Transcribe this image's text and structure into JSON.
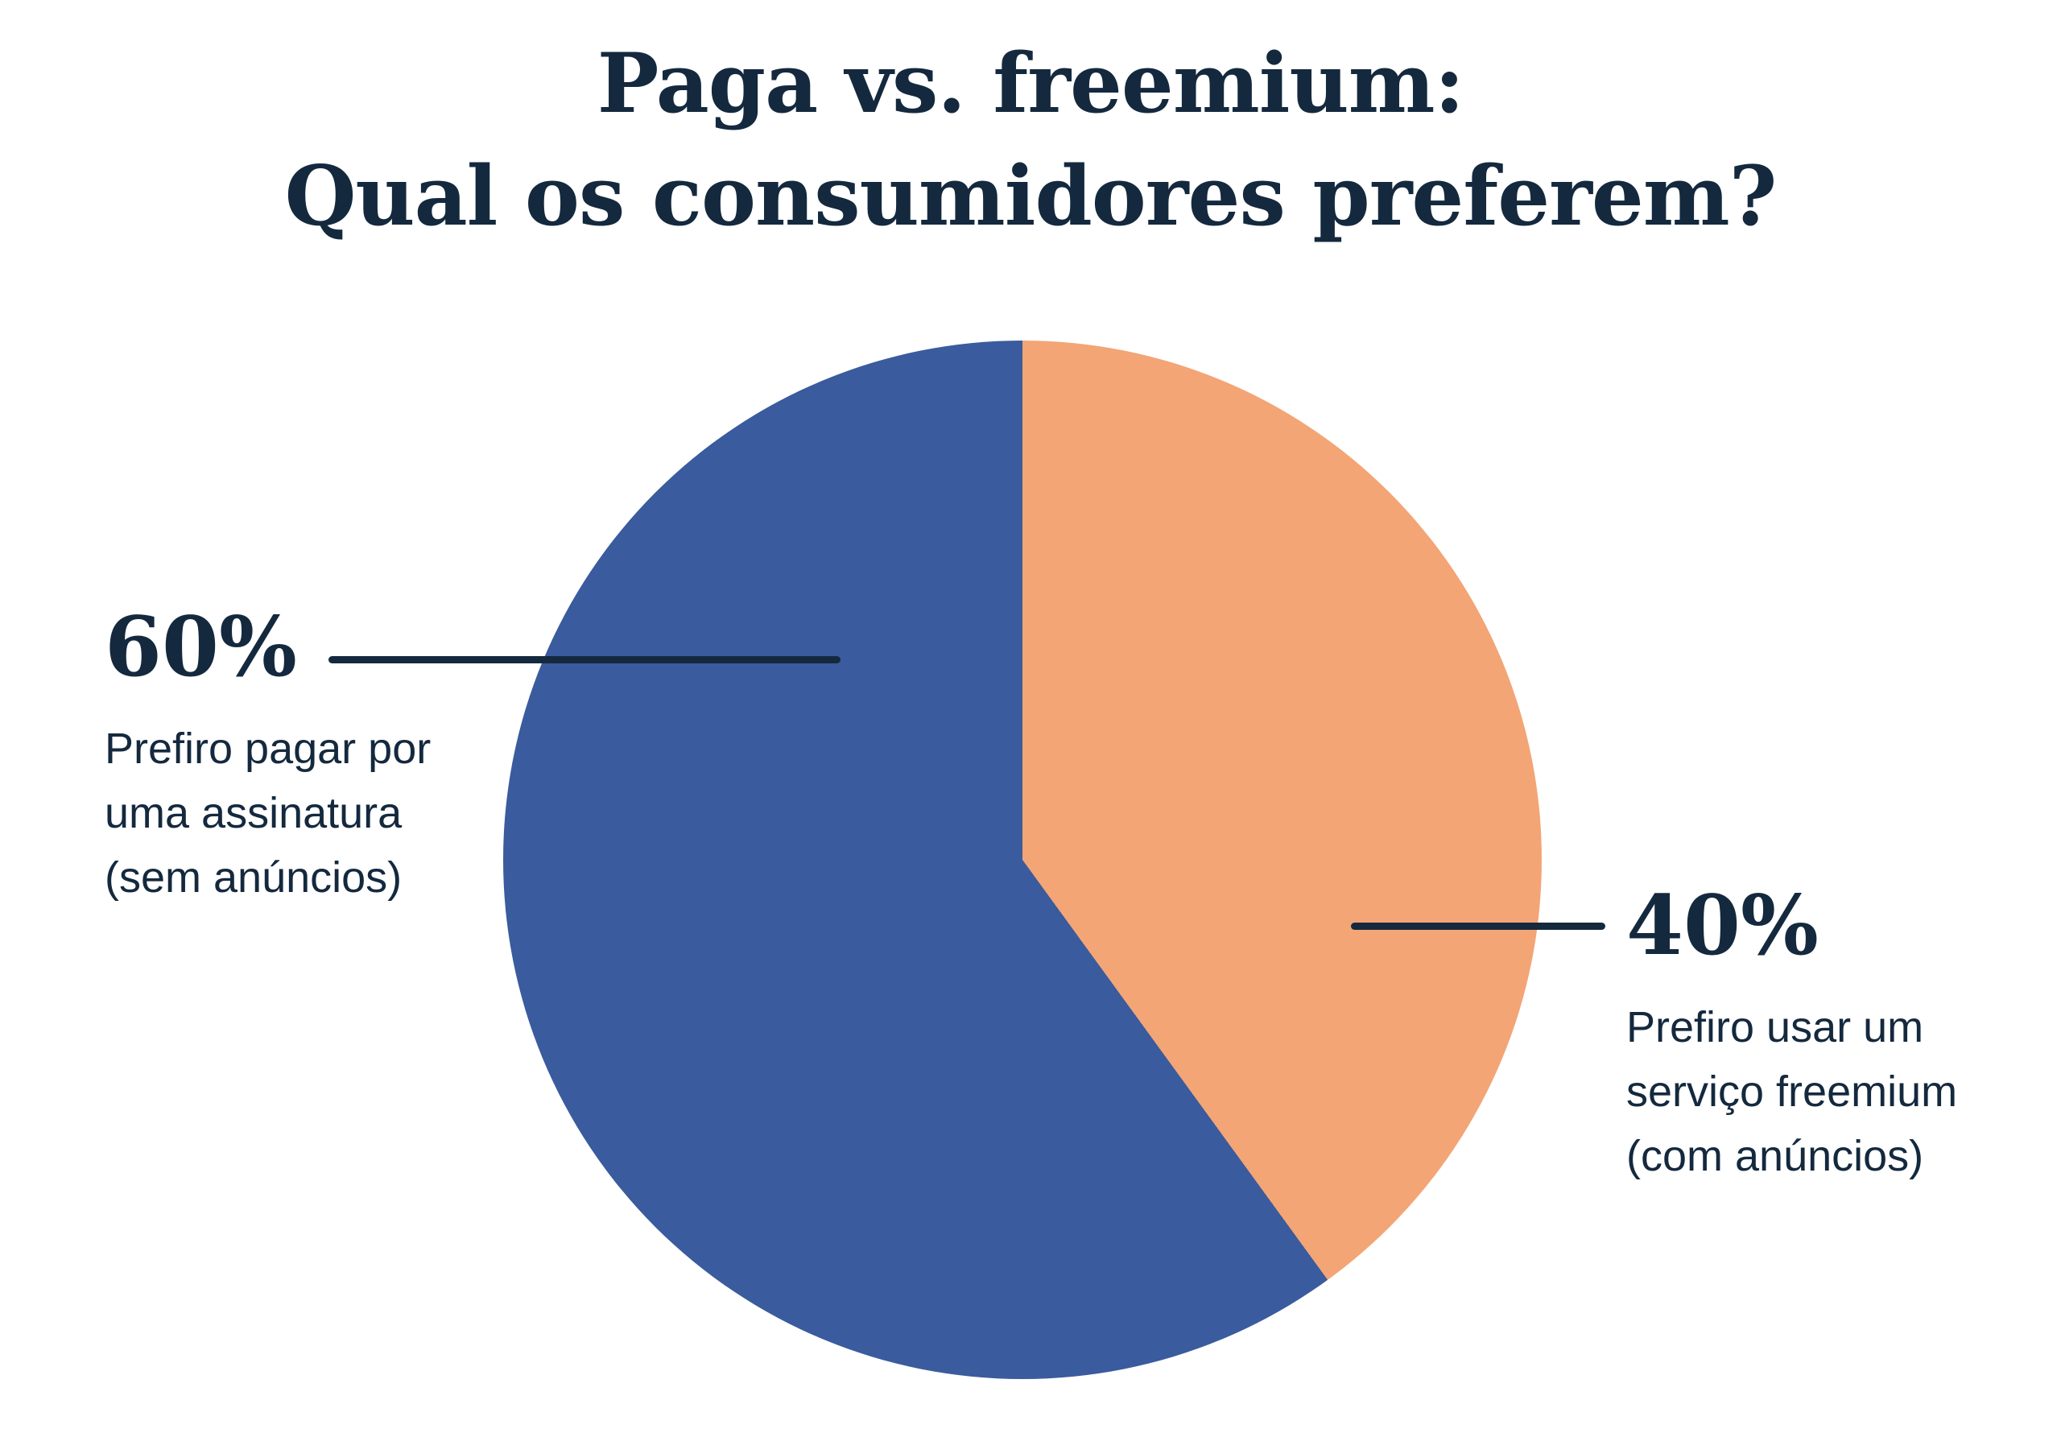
{
  "title": {
    "line1": "Paga vs. freemium:",
    "line2": "Qual os consumidores preferem?"
  },
  "chart_data": {
    "type": "pie",
    "title": "Paga vs. freemium: Qual os consumidores preferem?",
    "direction": "clockwise",
    "draw_start_deg": 144,
    "legend_position": "callout labels left and right of pie",
    "slices": [
      {
        "name": "paid-subscription",
        "percent_label": "60%",
        "value": 60,
        "label": "Prefiro pagar por uma assinatura (sem anúncios)",
        "color": "#3A5B9D"
      },
      {
        "name": "freemium-service",
        "percent_label": "40%",
        "value": 40,
        "label": "Prefiro usar um serviço freemium (com anúncios)",
        "color": "#F3A575"
      }
    ]
  },
  "labels": {
    "left": {
      "percent": "60%",
      "lines": [
        "Prefiro pagar por",
        "uma assinatura",
        "(sem anúncios)"
      ]
    },
    "right": {
      "percent": "40%",
      "lines": [
        "Prefiro usar um",
        "serviço freemium",
        "(com anúncios)"
      ]
    }
  },
  "colors": {
    "blue_slice": "#3A5B9D",
    "orange_slice": "#F3A575",
    "text": "#14293E",
    "background": "#FFFFFF"
  }
}
